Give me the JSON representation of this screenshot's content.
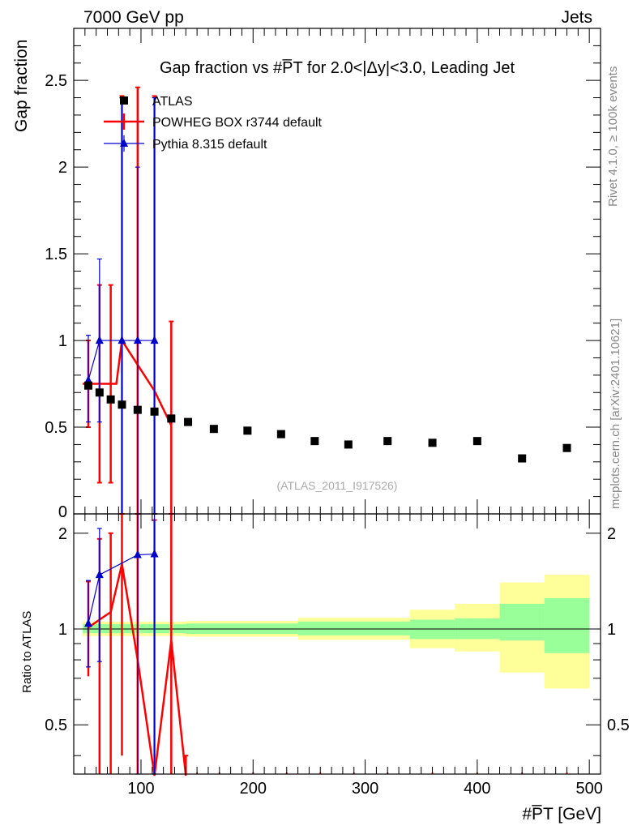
{
  "header": {
    "left": "7000 GeV pp",
    "right": "Jets",
    "side_top": "Rivet 4.1.0, ≥ 100k events",
    "side_bottom": "mcplots.cern.ch [arXiv:2401.10621]"
  },
  "chart_data": [
    {
      "type": "scatter",
      "panel": "main",
      "title": "Gap fraction vs #P̅T for 2.0<|Δy|<3.0, Leading Jet",
      "ylabel": "Gap fraction",
      "xlim": [
        40,
        510
      ],
      "ylim": [
        0,
        2.8
      ],
      "yticks": [
        0.5,
        1,
        1.5,
        2,
        2.5
      ],
      "ytick_labels": [
        "0.5",
        "1",
        "1.5",
        "2",
        "2.5"
      ],
      "bottom_tick_label": "0",
      "watermark": "(ATLAS_2011_I917526)",
      "legend_position": "top-left",
      "series": [
        {
          "name": "ATLAS",
          "style": "square-markers",
          "color": "#000000",
          "x": [
            53,
            63,
            73,
            83,
            97,
            112,
            127,
            142,
            165,
            195,
            225,
            255,
            285,
            320,
            360,
            400,
            440,
            480
          ],
          "y": [
            0.74,
            0.7,
            0.66,
            0.63,
            0.6,
            0.59,
            0.55,
            0.53,
            0.49,
            0.48,
            0.46,
            0.42,
            0.4,
            0.42,
            0.41,
            0.42,
            0.32,
            0.38
          ]
        },
        {
          "name": "POWHEG BOX r3744 default",
          "style": "step-line",
          "color": "#ff0000",
          "x": [
            53,
            63,
            73,
            83,
            97,
            112,
            127
          ],
          "y": [
            0.75,
            0.75,
            0.75,
            1.0,
            0.86,
            0.71,
            0.51
          ],
          "yerr_low": [
            0.25,
            0.57,
            0.57,
            1.0,
            0.86,
            0.71,
            0.51
          ],
          "yerr_high": [
            0.25,
            0.57,
            0.57,
            1.41,
            1.6,
            1.7,
            0.6
          ],
          "bins": [
            [
              48,
              58
            ],
            [
              58,
              68
            ],
            [
              68,
              78
            ],
            [
              78,
              88
            ],
            [
              88,
              105
            ],
            [
              105,
              120
            ],
            [
              120,
              135
            ]
          ]
        },
        {
          "name": "Pythia 8.315 default",
          "style": "triangle-markers",
          "color": "#0000cc",
          "x": [
            53,
            63,
            83,
            97,
            112
          ],
          "y": [
            0.77,
            1.0,
            1.0,
            1.0,
            1.0
          ],
          "yerr_low": [
            0.24,
            0.47,
            1.0,
            1.0,
            1.0
          ],
          "yerr_high": [
            0.26,
            0.47,
            1.4,
            1.0,
            1.4
          ]
        }
      ]
    },
    {
      "type": "line",
      "panel": "ratio",
      "ylabel": "Ratio to ATLAS",
      "xlabel": "#P̅T [GeV]",
      "xlim": [
        40,
        510
      ],
      "ylim": [
        0.35,
        2.3
      ],
      "yticks": [
        0.5,
        1,
        2
      ],
      "ytick_labels": [
        "0.5",
        "1",
        "2"
      ],
      "xticks": [
        100,
        200,
        300,
        400,
        500
      ],
      "xtick_labels": [
        "100",
        "200",
        "300",
        "400",
        "500"
      ],
      "bands": {
        "bins": [
          [
            48,
            140
          ],
          [
            140,
            240
          ],
          [
            240,
            340
          ],
          [
            340,
            380
          ],
          [
            380,
            420
          ],
          [
            420,
            460
          ],
          [
            460,
            500
          ]
        ],
        "inner_low": [
          0.97,
          0.965,
          0.955,
          0.93,
          0.93,
          0.92,
          0.84
        ],
        "inner_high": [
          1.035,
          1.04,
          1.055,
          1.07,
          1.08,
          1.2,
          1.25
        ],
        "outer_low": [
          0.95,
          0.945,
          0.925,
          0.87,
          0.85,
          0.73,
          0.65
        ],
        "outer_high": [
          1.055,
          1.06,
          1.085,
          1.15,
          1.2,
          1.4,
          1.48
        ],
        "inner_color": "#99ff99",
        "outer_color": "#ffff99"
      },
      "series": [
        {
          "name": "POWHEG BOX r3744 default",
          "color": "#ff0000",
          "x": [
            53,
            63,
            73,
            83,
            97,
            112,
            127,
            140
          ],
          "y": [
            1.01,
            1.07,
            1.13,
            1.6,
            0.8,
            0.3,
            0.92,
            0.2
          ],
          "yerr_low": [
            0.3,
            0.8,
            0.85,
            1.2,
            0.8,
            0.3,
            0.9,
            0.2
          ],
          "yerr_high": [
            0.4,
            0.85,
            0.87,
            1.0,
            1.5,
            1.9,
            1.4,
            0.2
          ]
        },
        {
          "name": "Pythia 8.315 default",
          "color": "#0000cc",
          "x": [
            53,
            63,
            97,
            112
          ],
          "y": [
            1.04,
            1.48,
            1.71,
            1.72
          ],
          "yerr_low": [
            0.28,
            0.69,
            1.7,
            1.7
          ],
          "yerr_high": [
            0.38,
            0.59,
            1.0,
            1.0
          ]
        }
      ]
    }
  ]
}
